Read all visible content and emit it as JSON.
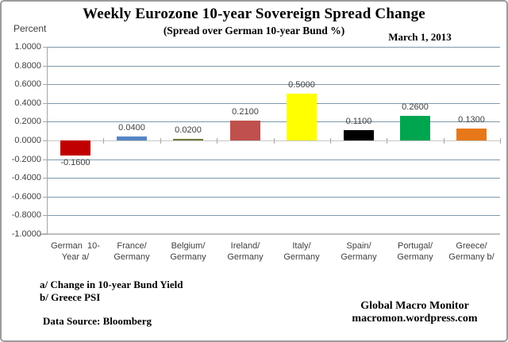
{
  "header": {
    "title": "Weekly Eurozone 10-year Sovereign Spread Change",
    "subtitle": "(Spread over German 10-year Bund  %)",
    "date_label": "March 1, 2013",
    "axis_unit_label": "Percent"
  },
  "chart_data": {
    "type": "bar",
    "title": "Weekly Eurozone 10-year Sovereign Spread Change",
    "subtitle": "(Spread over German 10-year Bund  %)",
    "ylabel": "Percent",
    "ylim": [
      -1.0,
      1.0
    ],
    "ytick_step": 0.2,
    "grid": true,
    "legend": "none",
    "yticks": [
      {
        "v": 1.0,
        "label": "1.0000"
      },
      {
        "v": 0.8,
        "label": "0.8000"
      },
      {
        "v": 0.6,
        "label": "0.6000"
      },
      {
        "v": 0.4,
        "label": "0.4000"
      },
      {
        "v": 0.2,
        "label": "0.2000"
      },
      {
        "v": 0.0,
        "label": "0.0000"
      },
      {
        "v": -0.2,
        "label": "-0.2000"
      },
      {
        "v": -0.4,
        "label": "-0.4000"
      },
      {
        "v": -0.6,
        "label": "-0.6000"
      },
      {
        "v": -0.8,
        "label": "-0.8000"
      },
      {
        "v": -1.0,
        "label": "-1.0000"
      }
    ],
    "categories": [
      [
        "German  10-",
        "Year a/"
      ],
      [
        "France/",
        "Germany"
      ],
      [
        "Belgium/",
        "Germany"
      ],
      [
        "Ireland/",
        "Germany"
      ],
      [
        "Italy/",
        "Germany"
      ],
      [
        "Spain/",
        "Germany"
      ],
      [
        "Portugal/",
        "Germany"
      ],
      [
        "Greece/",
        "Germany b/"
      ]
    ],
    "values": [
      -0.16,
      0.04,
      0.02,
      0.21,
      0.5,
      0.11,
      0.26,
      0.13
    ],
    "value_labels": [
      "-0.1600",
      "0.0400",
      "0.0200",
      "0.2100",
      "0.5000",
      "0.1100",
      "0.2600",
      "0.1300"
    ],
    "bar_colors": [
      "#c00000",
      "#5585c5",
      "#71783c",
      "#c0504d",
      "#ffff00",
      "#000000",
      "#00a550",
      "#e67819"
    ],
    "grid_color": "#7e99ad",
    "zero_line_color": "#c6c6c6",
    "axis_color": "#a6a6a6",
    "bottom_line_color": "#bfbfbf"
  },
  "footnotes": {
    "line1": "a/ Change in 10-year Bund Yield",
    "line2": "b/ Greece PSI",
    "source": "Data Source:  Bloomberg"
  },
  "branding": {
    "line1": "Global Macro Monitor",
    "line2": "macromon.wordpress.com"
  }
}
